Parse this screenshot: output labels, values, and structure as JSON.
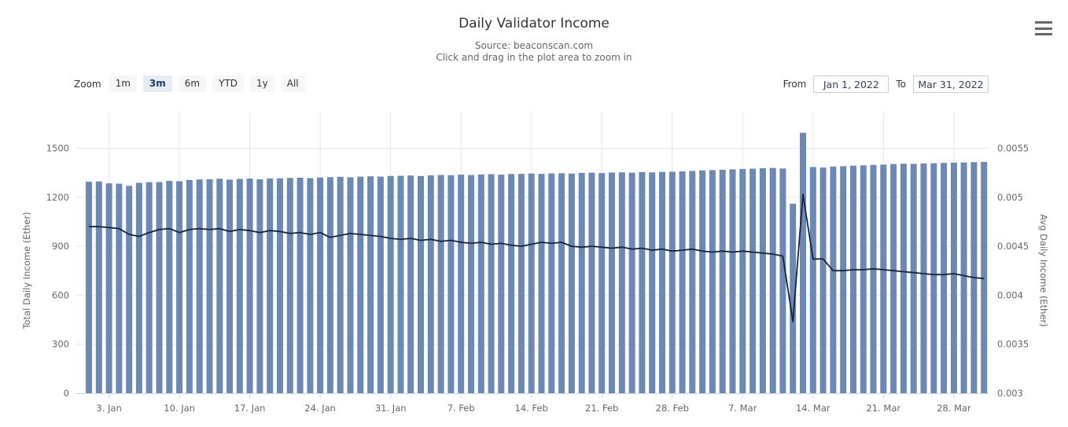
{
  "header": {
    "title": "Daily Validator Income",
    "subtitle_source": "Source: beaconscan.com",
    "subtitle_hint": "Click and drag in the plot area to zoom in"
  },
  "range_selector": {
    "zoom_label": "Zoom",
    "buttons": [
      "1m",
      "3m",
      "6m",
      "YTD",
      "1y",
      "All"
    ],
    "selected": "3m",
    "from_label": "From",
    "from_value": "Jan 1, 2022",
    "to_label": "To",
    "to_value": "Mar 31, 2022"
  },
  "colors": {
    "bar": "#6b89b2",
    "line": "#16243d",
    "grid": "#e6e6e6",
    "axis_line": "#ccd6eb",
    "axis_label": "#666666"
  },
  "chart_data": {
    "type": "bar",
    "title": "Daily Validator Income",
    "subtitle": "Source: beaconscan.com — Click and drag in the plot area to zoom in",
    "x_range": [
      "Jan 1, 2022",
      "Mar 31, 2022"
    ],
    "grid": true,
    "legend": "none",
    "x_axis": {
      "tick_labels": [
        "3. Jan",
        "10. Jan",
        "17. Jan",
        "24. Jan",
        "31. Jan",
        "7. Feb",
        "14. Feb",
        "21. Feb",
        "28. Feb",
        "7. Mar",
        "14. Mar",
        "21. Mar",
        "28. Mar"
      ],
      "tick_day_index": [
        2,
        9,
        16,
        23,
        30,
        37,
        44,
        51,
        58,
        65,
        72,
        79,
        86
      ]
    },
    "left_axis": {
      "title": "Total Daily Income (Ether)",
      "tick_labels": [
        "0",
        "300",
        "600",
        "900",
        "1200",
        "1500"
      ],
      "range": [
        0,
        1500
      ]
    },
    "right_axis": {
      "title": "Avg Daily Income (Ether)",
      "tick_labels": [
        "0.003",
        "0.0035",
        "0.004",
        "0.0045",
        "0.005",
        "0.0055"
      ],
      "range": [
        0.003,
        0.0055
      ]
    },
    "series": [
      {
        "name": "Total Daily Income (Ether)",
        "type": "column",
        "axis": "left",
        "values": [
          1295,
          1297,
          1285,
          1283,
          1270,
          1288,
          1292,
          1293,
          1300,
          1298,
          1306,
          1309,
          1310,
          1313,
          1308,
          1312,
          1314,
          1310,
          1315,
          1316,
          1318,
          1320,
          1317,
          1321,
          1323,
          1325,
          1322,
          1326,
          1328,
          1326,
          1330,
          1331,
          1333,
          1330,
          1334,
          1336,
          1335,
          1338,
          1336,
          1339,
          1341,
          1338,
          1342,
          1343,
          1345,
          1343,
          1346,
          1347,
          1345,
          1349,
          1350,
          1348,
          1351,
          1352,
          1350,
          1354,
          1352,
          1355,
          1356,
          1358,
          1361,
          1364,
          1366,
          1368,
          1371,
          1373,
          1375,
          1377,
          1379,
          1376,
          1160,
          1595,
          1385,
          1382,
          1388,
          1390,
          1393,
          1395,
          1398,
          1400,
          1403,
          1405,
          1404,
          1407,
          1408,
          1410,
          1412,
          1413,
          1415,
          1416
        ]
      },
      {
        "name": "Avg Daily Income (Ether)",
        "type": "line",
        "axis": "right",
        "values": [
          0.0047,
          0.0047,
          0.00469,
          0.00468,
          0.00462,
          0.0046,
          0.00464,
          0.00467,
          0.00468,
          0.00464,
          0.00467,
          0.00468,
          0.00467,
          0.00468,
          0.00465,
          0.00467,
          0.00466,
          0.00464,
          0.00466,
          0.00465,
          0.00463,
          0.00464,
          0.00462,
          0.00464,
          0.00459,
          0.00461,
          0.00463,
          0.00462,
          0.00461,
          0.0046,
          0.00458,
          0.00457,
          0.00458,
          0.00456,
          0.00457,
          0.00455,
          0.00456,
          0.00454,
          0.00453,
          0.00454,
          0.00452,
          0.00453,
          0.00451,
          0.0045,
          0.00452,
          0.00454,
          0.00453,
          0.00454,
          0.0045,
          0.00449,
          0.0045,
          0.00449,
          0.00448,
          0.00449,
          0.00447,
          0.00448,
          0.00446,
          0.00447,
          0.00445,
          0.00446,
          0.00447,
          0.00445,
          0.00444,
          0.00445,
          0.00444,
          0.00445,
          0.00444,
          0.00443,
          0.00442,
          0.0044,
          0.00373,
          0.00503,
          0.00437,
          0.00437,
          0.00425,
          0.00425,
          0.00426,
          0.00426,
          0.00427,
          0.00426,
          0.00425,
          0.00424,
          0.00423,
          0.00422,
          0.00421,
          0.00421,
          0.00422,
          0.0042,
          0.00418,
          0.00417
        ]
      }
    ]
  }
}
